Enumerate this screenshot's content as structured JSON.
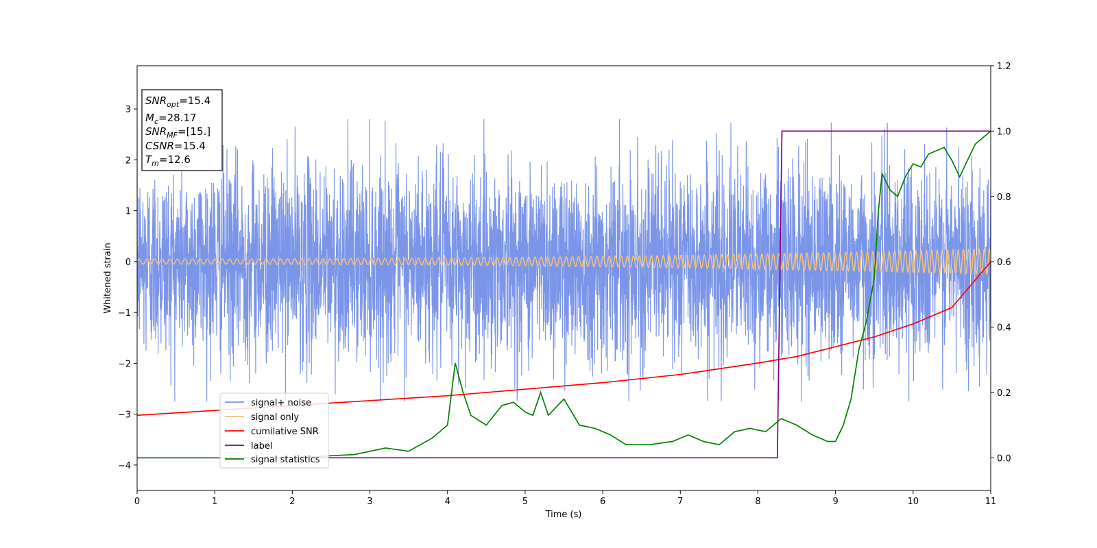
{
  "chart_data": {
    "type": "line",
    "xlabel": "Time (s)",
    "ylabel": "Whitened strain",
    "xlim": [
      0,
      11
    ],
    "ylim_left": [
      -4.5,
      3.85
    ],
    "ylim_right": [
      -0.1,
      1.2
    ],
    "x_ticks": [
      0,
      1,
      2,
      3,
      4,
      5,
      6,
      7,
      8,
      9,
      10,
      11
    ],
    "y_ticks_left": [
      -4,
      -3,
      -2,
      -1,
      0,
      1,
      2,
      3
    ],
    "y_ticks_right": [
      0.0,
      0.2,
      0.4,
      0.6,
      0.8,
      1.0,
      1.2
    ],
    "info_box": [
      {
        "main": "SNR",
        "sub": "opt",
        "rest": "=15.4"
      },
      {
        "main": "M",
        "sub": "c",
        "rest": "=28.17"
      },
      {
        "main": "SNR",
        "sub": "MF",
        "rest": "=[15.]"
      },
      {
        "main": "CSNR",
        "sub": "",
        "rest": "=15.4"
      },
      {
        "main": "T",
        "sub": "m",
        "rest": "=12.6"
      }
    ],
    "legend_placement": "lower-left",
    "series": [
      {
        "name": "signal+ noise",
        "axis": "left",
        "color": "#7b96e8",
        "description": "whitened noise, amplitude ~1 sigma",
        "sigma": 0.95
      },
      {
        "name": "signal only",
        "axis": "left",
        "color": "#f5c27a",
        "chirp": {
          "t_start": 0,
          "t_end": 11,
          "amp_start": 0.05,
          "amp_end": 0.25,
          "f_start": 10,
          "f_end": 15
        }
      },
      {
        "name": "cumilative SNR",
        "axis": "right",
        "color": "#ff0000",
        "x": [
          0,
          1,
          2,
          3,
          4,
          5,
          6,
          7,
          8,
          8.5,
          9,
          9.5,
          10,
          10.5,
          11
        ],
        "y": [
          0.13,
          0.145,
          0.16,
          0.175,
          0.19,
          0.21,
          0.23,
          0.255,
          0.29,
          0.31,
          0.34,
          0.37,
          0.41,
          0.46,
          0.6
        ]
      },
      {
        "name": "label",
        "axis": "right",
        "color": "#800080",
        "x": [
          0,
          8.25,
          8.31,
          11
        ],
        "y": [
          0,
          0,
          1,
          1
        ]
      },
      {
        "name": "signal statistics",
        "axis": "right",
        "color": "#008000",
        "x": [
          0,
          1,
          2,
          2.8,
          3,
          3.2,
          3.5,
          3.8,
          4.0,
          4.1,
          4.2,
          4.3,
          4.5,
          4.7,
          4.85,
          5.0,
          5.1,
          5.2,
          5.3,
          5.5,
          5.7,
          5.9,
          6.1,
          6.3,
          6.6,
          6.9,
          7.1,
          7.3,
          7.5,
          7.7,
          7.9,
          8.1,
          8.3,
          8.5,
          8.7,
          8.9,
          9.0,
          9.1,
          9.2,
          9.3,
          9.4,
          9.5,
          9.55,
          9.6,
          9.7,
          9.8,
          9.9,
          10.0,
          10.1,
          10.2,
          10.3,
          10.4,
          10.5,
          10.6,
          10.7,
          10.8,
          10.9,
          11.0
        ],
        "y": [
          0.0,
          0.0,
          0.0,
          0.01,
          0.02,
          0.03,
          0.02,
          0.06,
          0.1,
          0.29,
          0.2,
          0.13,
          0.1,
          0.16,
          0.17,
          0.14,
          0.13,
          0.2,
          0.13,
          0.18,
          0.1,
          0.09,
          0.07,
          0.04,
          0.04,
          0.05,
          0.07,
          0.05,
          0.04,
          0.08,
          0.09,
          0.08,
          0.12,
          0.1,
          0.07,
          0.05,
          0.05,
          0.1,
          0.18,
          0.33,
          0.42,
          0.55,
          0.75,
          0.87,
          0.82,
          0.8,
          0.86,
          0.9,
          0.89,
          0.93,
          0.94,
          0.95,
          0.91,
          0.86,
          0.91,
          0.96,
          0.98,
          1.0
        ]
      }
    ]
  }
}
